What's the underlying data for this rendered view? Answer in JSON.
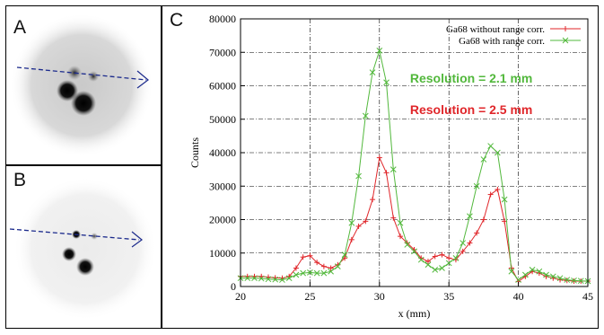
{
  "panels": {
    "a_label": "A",
    "b_label": "B",
    "c_label": "C"
  },
  "annotations": {
    "green_resolution": "Resolution = 2.1 mm",
    "red_resolution": "Resolution = 2.5 mm"
  },
  "colors": {
    "series_without": "#e0262a",
    "series_with": "#52b83c",
    "arrow": "#1b2a8c",
    "grid": "#000000"
  },
  "chart_data": {
    "type": "line",
    "xlabel": "x (mm)",
    "ylabel": "Counts",
    "xlim": [
      20,
      45
    ],
    "ylim": [
      0,
      80000
    ],
    "xticks": [
      20,
      25,
      30,
      35,
      40,
      45
    ],
    "yticks": [
      0,
      10000,
      20000,
      30000,
      40000,
      50000,
      60000,
      70000,
      80000
    ],
    "grid": true,
    "legend_position": "top-right",
    "series": [
      {
        "name": "Ga68 without range corr.",
        "color": "#e0262a",
        "marker": "+",
        "x": [
          20.0,
          20.5,
          21.0,
          21.5,
          22.0,
          22.5,
          23.0,
          23.5,
          24.0,
          24.5,
          25.0,
          25.5,
          26.0,
          26.5,
          27.0,
          27.5,
          28.0,
          28.5,
          29.0,
          29.5,
          30.0,
          30.5,
          31.0,
          31.5,
          32.0,
          32.5,
          33.0,
          33.5,
          34.0,
          34.5,
          35.0,
          35.5,
          36.0,
          36.5,
          37.0,
          37.5,
          38.0,
          38.5,
          39.0,
          39.5,
          40.0,
          40.5,
          41.0,
          41.5,
          42.0,
          42.5,
          43.0,
          43.5,
          44.0,
          44.5,
          45.0
        ],
        "values": [
          3000,
          3000,
          3000,
          3000,
          2800,
          2600,
          2500,
          3000,
          5500,
          8800,
          9200,
          7200,
          6000,
          5500,
          6500,
          8500,
          14000,
          18000,
          19500,
          26000,
          38500,
          34000,
          20500,
          15000,
          13000,
          11000,
          8500,
          7500,
          9000,
          9500,
          8500,
          8000,
          10500,
          13000,
          16000,
          20000,
          27500,
          29000,
          19500,
          5500,
          1500,
          3000,
          4500,
          4000,
          3000,
          2500,
          2000,
          1800,
          1600,
          1600,
          1600
        ]
      },
      {
        "name": "Ga68 with range corr.",
        "color": "#52b83c",
        "marker": "x",
        "x": [
          20.0,
          20.5,
          21.0,
          21.5,
          22.0,
          22.5,
          23.0,
          23.5,
          24.0,
          24.5,
          25.0,
          25.5,
          26.0,
          26.5,
          27.0,
          27.5,
          28.0,
          28.5,
          29.0,
          29.5,
          30.0,
          30.5,
          31.0,
          31.5,
          32.0,
          32.5,
          33.0,
          33.5,
          34.0,
          34.5,
          35.0,
          35.5,
          36.0,
          36.5,
          37.0,
          37.5,
          38.0,
          38.5,
          39.0,
          39.5,
          40.0,
          40.5,
          41.0,
          41.5,
          42.0,
          42.5,
          43.0,
          43.5,
          44.0,
          44.5,
          45.0
        ],
        "values": [
          2500,
          2500,
          2500,
          2400,
          2200,
          2100,
          2000,
          2500,
          3500,
          4000,
          4200,
          4000,
          4000,
          4500,
          6000,
          9500,
          19000,
          33000,
          51000,
          64000,
          70500,
          61000,
          35000,
          19000,
          12500,
          10500,
          8000,
          6500,
          5000,
          5500,
          7000,
          8500,
          13000,
          21000,
          30000,
          38000,
          42000,
          40000,
          26000,
          4500,
          2000,
          3500,
          5000,
          4500,
          3500,
          3000,
          2500,
          2000,
          1800,
          1700,
          1600
        ]
      }
    ]
  }
}
